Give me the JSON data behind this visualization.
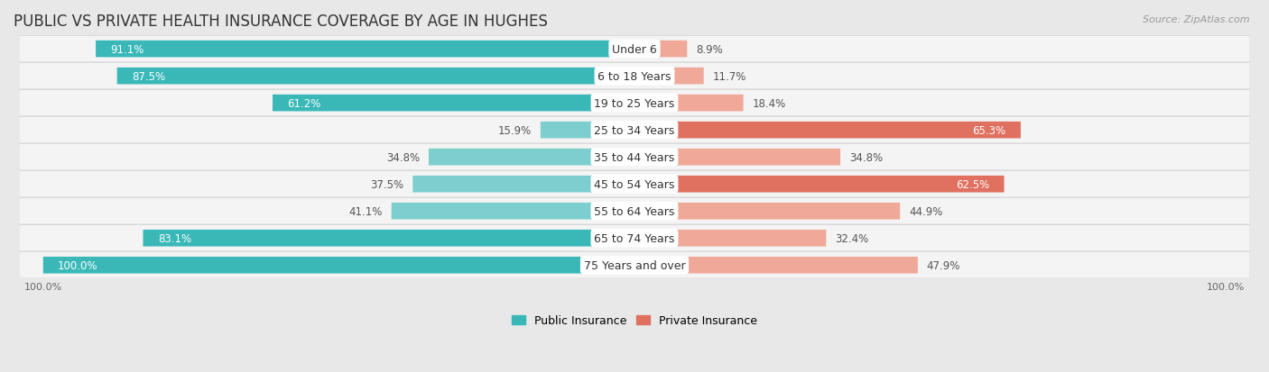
{
  "title": "PUBLIC VS PRIVATE HEALTH INSURANCE COVERAGE BY AGE IN HUGHES",
  "source": "Source: ZipAtlas.com",
  "categories": [
    "Under 6",
    "6 to 18 Years",
    "19 to 25 Years",
    "25 to 34 Years",
    "35 to 44 Years",
    "45 to 54 Years",
    "55 to 64 Years",
    "65 to 74 Years",
    "75 Years and over"
  ],
  "public_values": [
    91.1,
    87.5,
    61.2,
    15.9,
    34.8,
    37.5,
    41.1,
    83.1,
    100.0
  ],
  "private_values": [
    8.9,
    11.7,
    18.4,
    65.3,
    34.8,
    62.5,
    44.9,
    32.4,
    47.9
  ],
  "public_color_dark": "#3ab8b8",
  "public_color_light": "#7dcfcf",
  "private_color_dark": "#e07060",
  "private_color_light": "#f0a898",
  "background_color": "#e8e8e8",
  "row_bg_color": "#f4f4f4",
  "row_border_color": "#d0d0d0",
  "max_value": 100.0,
  "legend_public": "Public Insurance",
  "legend_private": "Private Insurance",
  "title_fontsize": 12,
  "label_fontsize": 8.5,
  "category_fontsize": 9,
  "source_fontsize": 8
}
